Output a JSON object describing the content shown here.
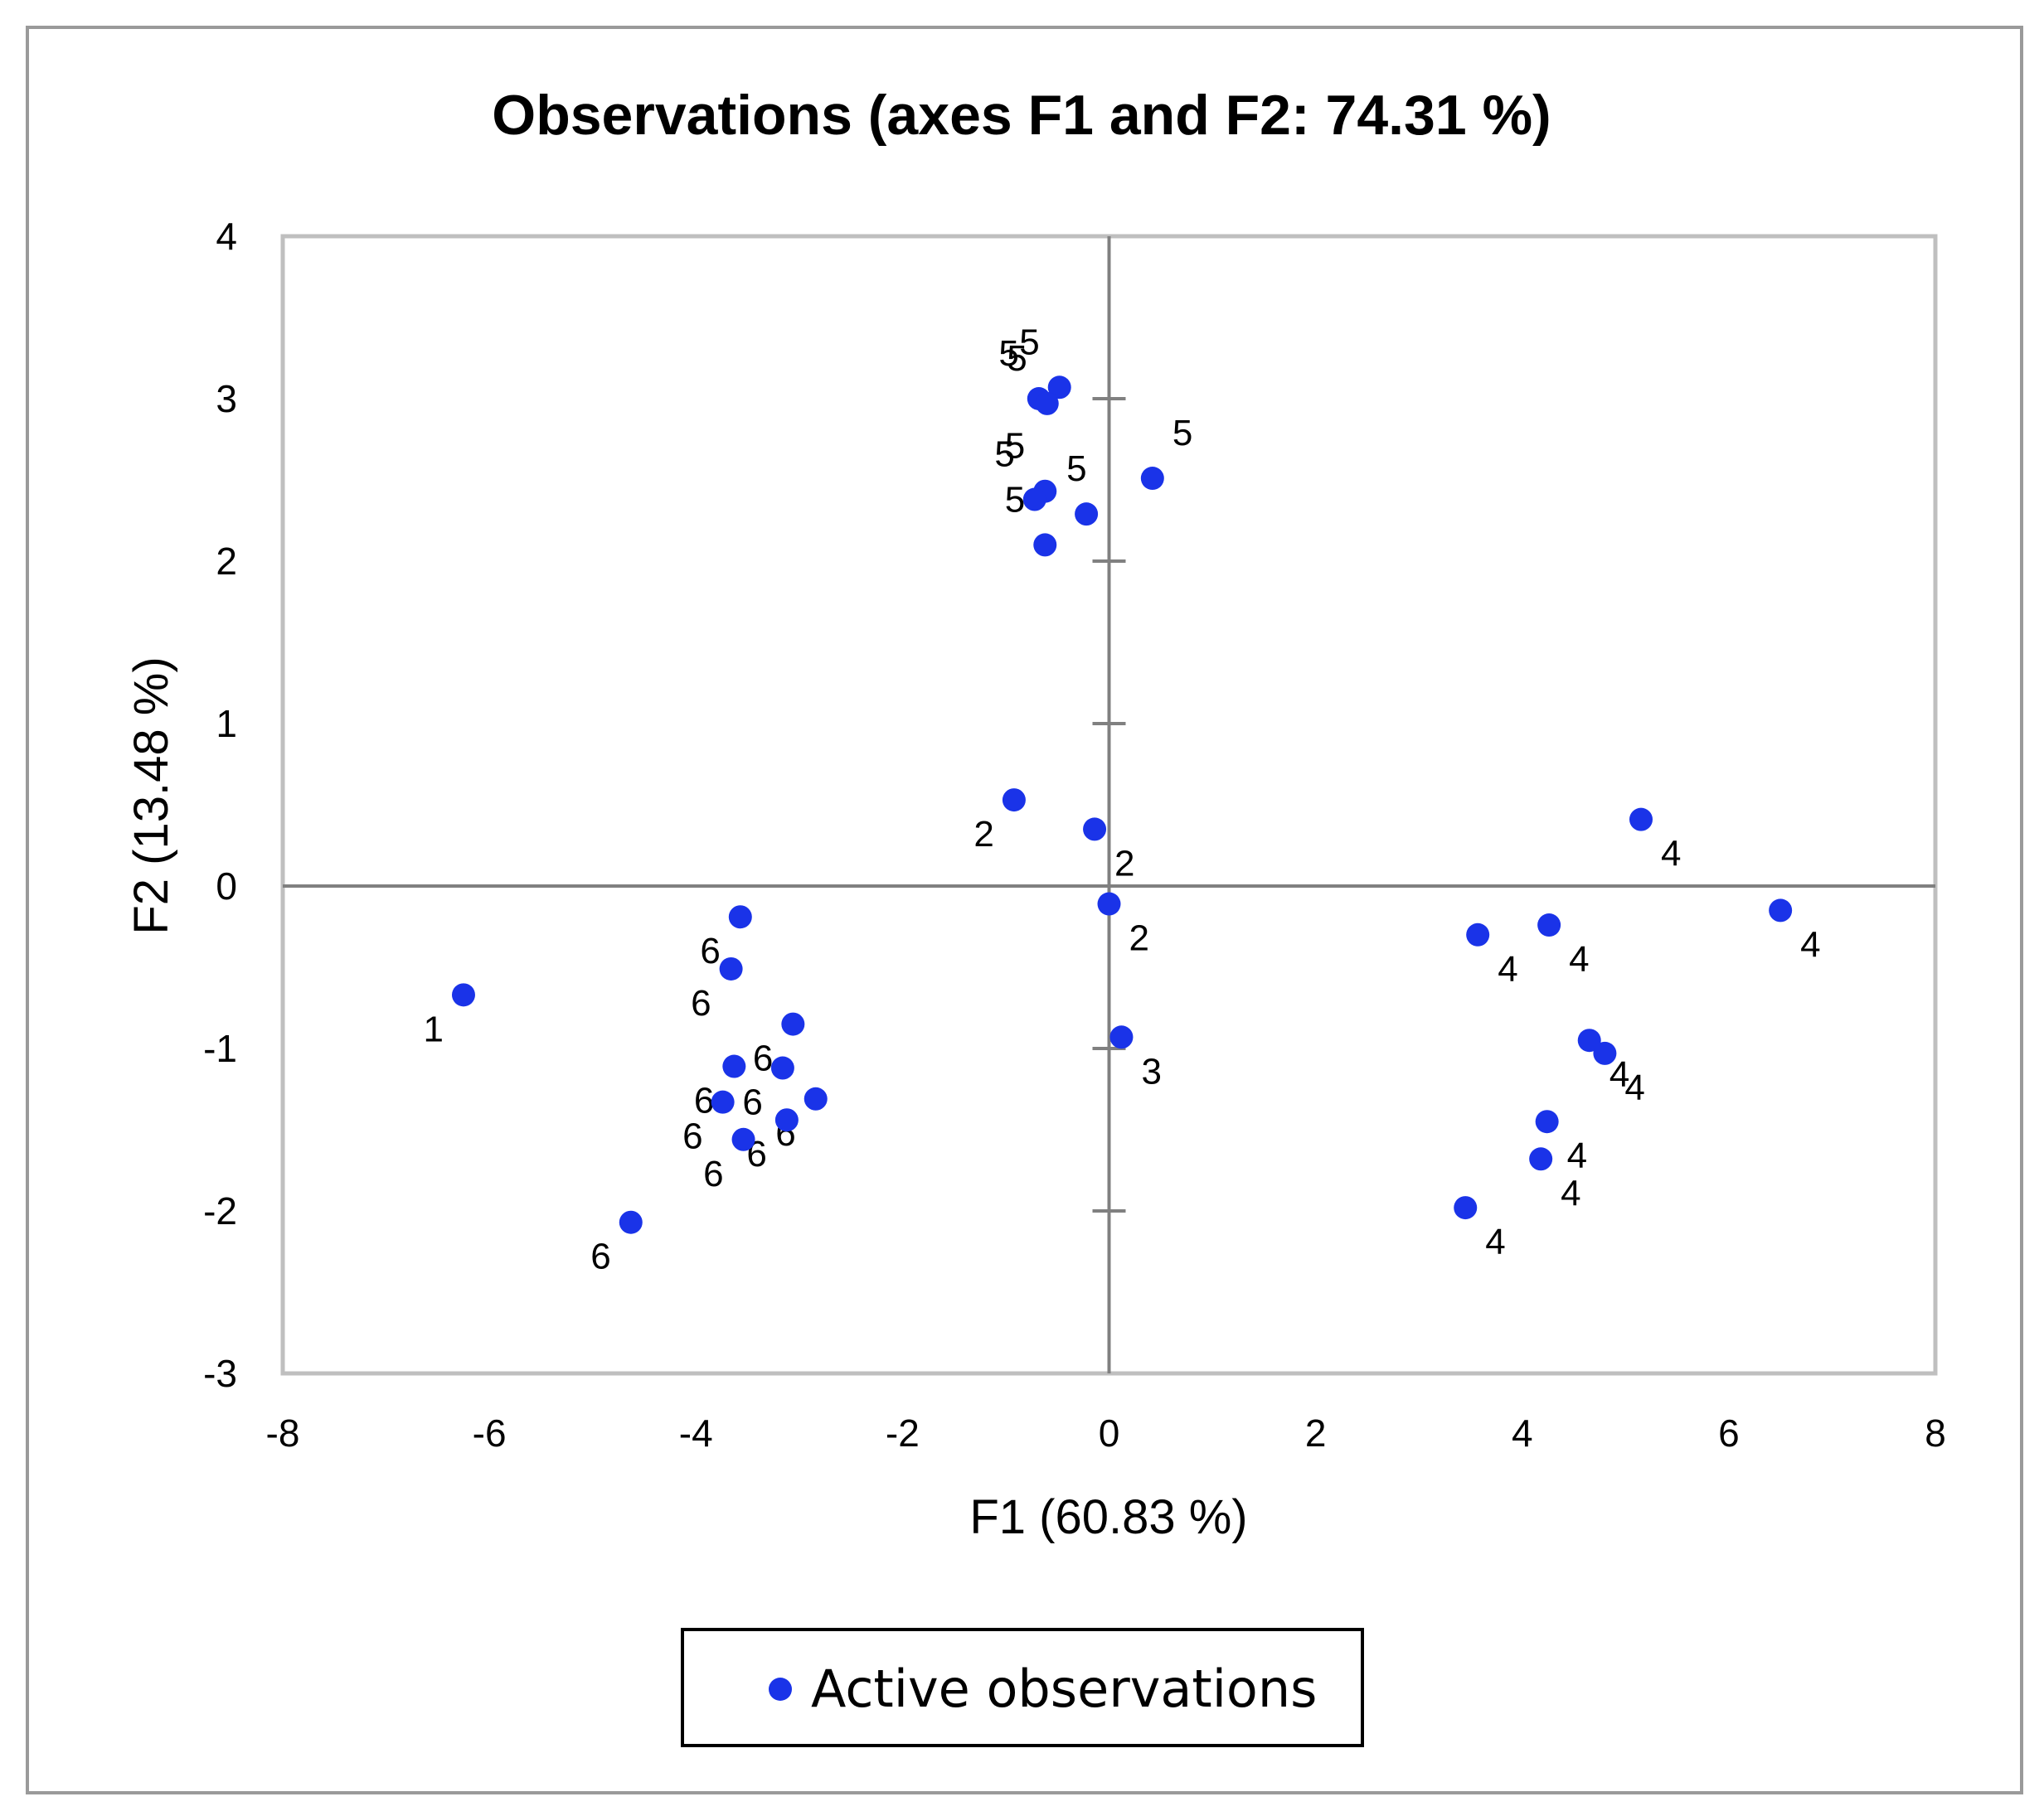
{
  "chart_data": {
    "type": "scatter",
    "title": "Observations (axes F1 and F2: 74.31 %)",
    "xlabel": "F1 (60.83 %)",
    "ylabel": "F2 (13.48 %)",
    "xlim": [
      -8,
      8
    ],
    "ylim": [
      -3,
      4
    ],
    "x_ticks": [
      -8,
      -6,
      -4,
      -2,
      0,
      2,
      4,
      6,
      8
    ],
    "y_ticks": [
      -3,
      -2,
      -1,
      0,
      1,
      2,
      3,
      4
    ],
    "x_tick_labels": [
      "-8",
      "-6",
      "-4",
      "-2",
      "0",
      "2",
      "4",
      "6",
      "8"
    ],
    "y_tick_labels": [
      "-3",
      "-2",
      "-1",
      "0",
      "1",
      "2",
      "3",
      "4"
    ],
    "grid": false,
    "legend": {
      "position": "bottom",
      "label": "Active observations"
    },
    "marker_color": "#1a33e8",
    "series": [
      {
        "name": "Active observations",
        "points": [
          {
            "x": -6.25,
            "y": -0.67,
            "label": "1"
          },
          {
            "x": -0.92,
            "y": 0.53,
            "label": "2"
          },
          {
            "x": -0.14,
            "y": 0.35,
            "label": "2"
          },
          {
            "x": 0.0,
            "y": -0.11,
            "label": "2"
          },
          {
            "x": 0.12,
            "y": -0.93,
            "label": "3"
          },
          {
            "x": 5.15,
            "y": 0.41,
            "label": "4"
          },
          {
            "x": 6.5,
            "y": -0.15,
            "label": "4"
          },
          {
            "x": 3.57,
            "y": -0.3,
            "label": "4"
          },
          {
            "x": 4.26,
            "y": -0.24,
            "label": "4"
          },
          {
            "x": 4.65,
            "y": -0.95,
            "label": "4"
          },
          {
            "x": 4.8,
            "y": -1.03,
            "label": "4"
          },
          {
            "x": 4.24,
            "y": -1.45,
            "label": "4"
          },
          {
            "x": 4.18,
            "y": -1.68,
            "label": "4"
          },
          {
            "x": 3.45,
            "y": -1.98,
            "label": "4"
          },
          {
            "x": -0.48,
            "y": 3.07,
            "label": "5"
          },
          {
            "x": -0.68,
            "y": 3.0,
            "label": "5"
          },
          {
            "x": -0.6,
            "y": 2.97,
            "label": "5"
          },
          {
            "x": 0.42,
            "y": 2.51,
            "label": "5"
          },
          {
            "x": -0.62,
            "y": 2.43,
            "label": "5"
          },
          {
            "x": -0.72,
            "y": 2.38,
            "label": "5"
          },
          {
            "x": -0.22,
            "y": 2.29,
            "label": "5"
          },
          {
            "x": -0.62,
            "y": 2.1,
            "label": "5"
          },
          {
            "x": -3.57,
            "y": -0.19,
            "label": "6"
          },
          {
            "x": -3.66,
            "y": -0.51,
            "label": "6"
          },
          {
            "x": -3.06,
            "y": -0.85,
            "label": "6"
          },
          {
            "x": -3.63,
            "y": -1.11,
            "label": "6"
          },
          {
            "x": -3.16,
            "y": -1.12,
            "label": "6"
          },
          {
            "x": -2.84,
            "y": -1.31,
            "label": "6"
          },
          {
            "x": -3.74,
            "y": -1.33,
            "label": "6"
          },
          {
            "x": -3.12,
            "y": -1.44,
            "label": "6"
          },
          {
            "x": -3.54,
            "y": -1.56,
            "label": "6"
          },
          {
            "x": -4.63,
            "y": -2.07,
            "label": "6"
          }
        ]
      }
    ]
  }
}
